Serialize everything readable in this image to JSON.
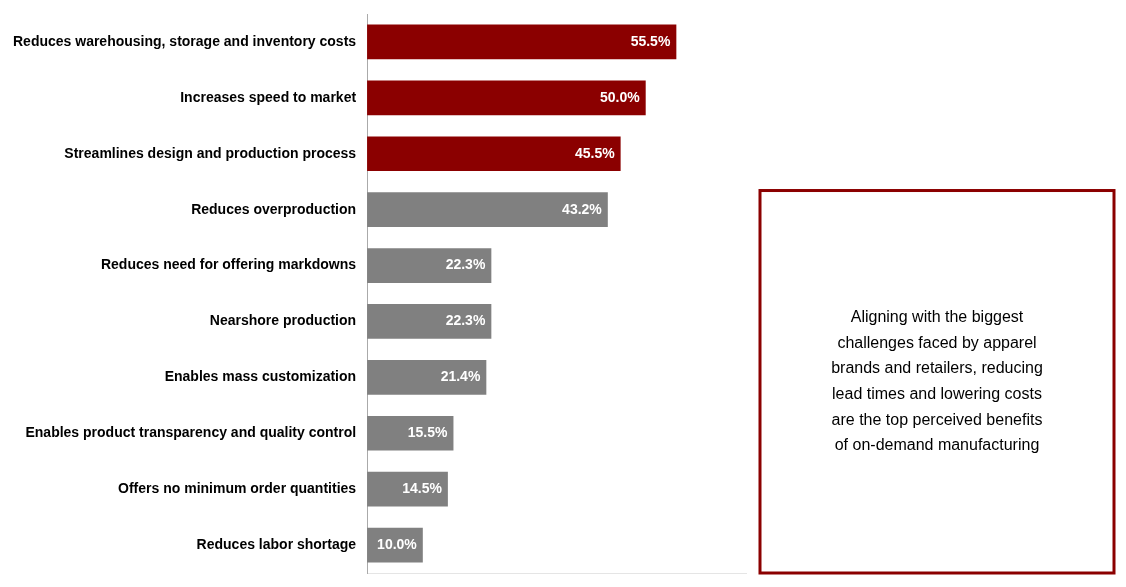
{
  "chart_data": {
    "type": "bar",
    "orientation": "horizontal",
    "categories": [
      "Reduces labor shortage",
      "Offers no minimum order quantities",
      "Enables product transparency and quality control",
      "Enables mass customization",
      "Nearshore production",
      "Reduces need for offering markdowns",
      "Reduces overproduction",
      "Streamlines design and production process",
      "Increases speed to market",
      "Reduces warehousing, storage and inventory costs"
    ],
    "values": [
      10.0,
      14.5,
      15.5,
      21.4,
      22.3,
      22.3,
      43.2,
      45.5,
      50.0,
      55.5
    ],
    "value_labels": [
      "10.0%",
      "14.5%",
      "15.5%",
      "21.4%",
      "22.3%",
      "22.3%",
      "43.2%",
      "45.5%",
      "50.0%",
      "55.5%"
    ],
    "colors": [
      "#808080",
      "#808080",
      "#808080",
      "#808080",
      "#808080",
      "#808080",
      "#808080",
      "#8B0000",
      "#8B0000",
      "#8B0000"
    ],
    "xlim": [
      0,
      68
    ],
    "data_labels": true,
    "tick_labels": "y",
    "grid": false,
    "annotation": "Aligning with the biggest\nchallenges faced by apparel\nbrands and retailers, reducing\nlead times and lowering costs\nare the top perceived benefits\nof on-demand manufacturing"
  }
}
